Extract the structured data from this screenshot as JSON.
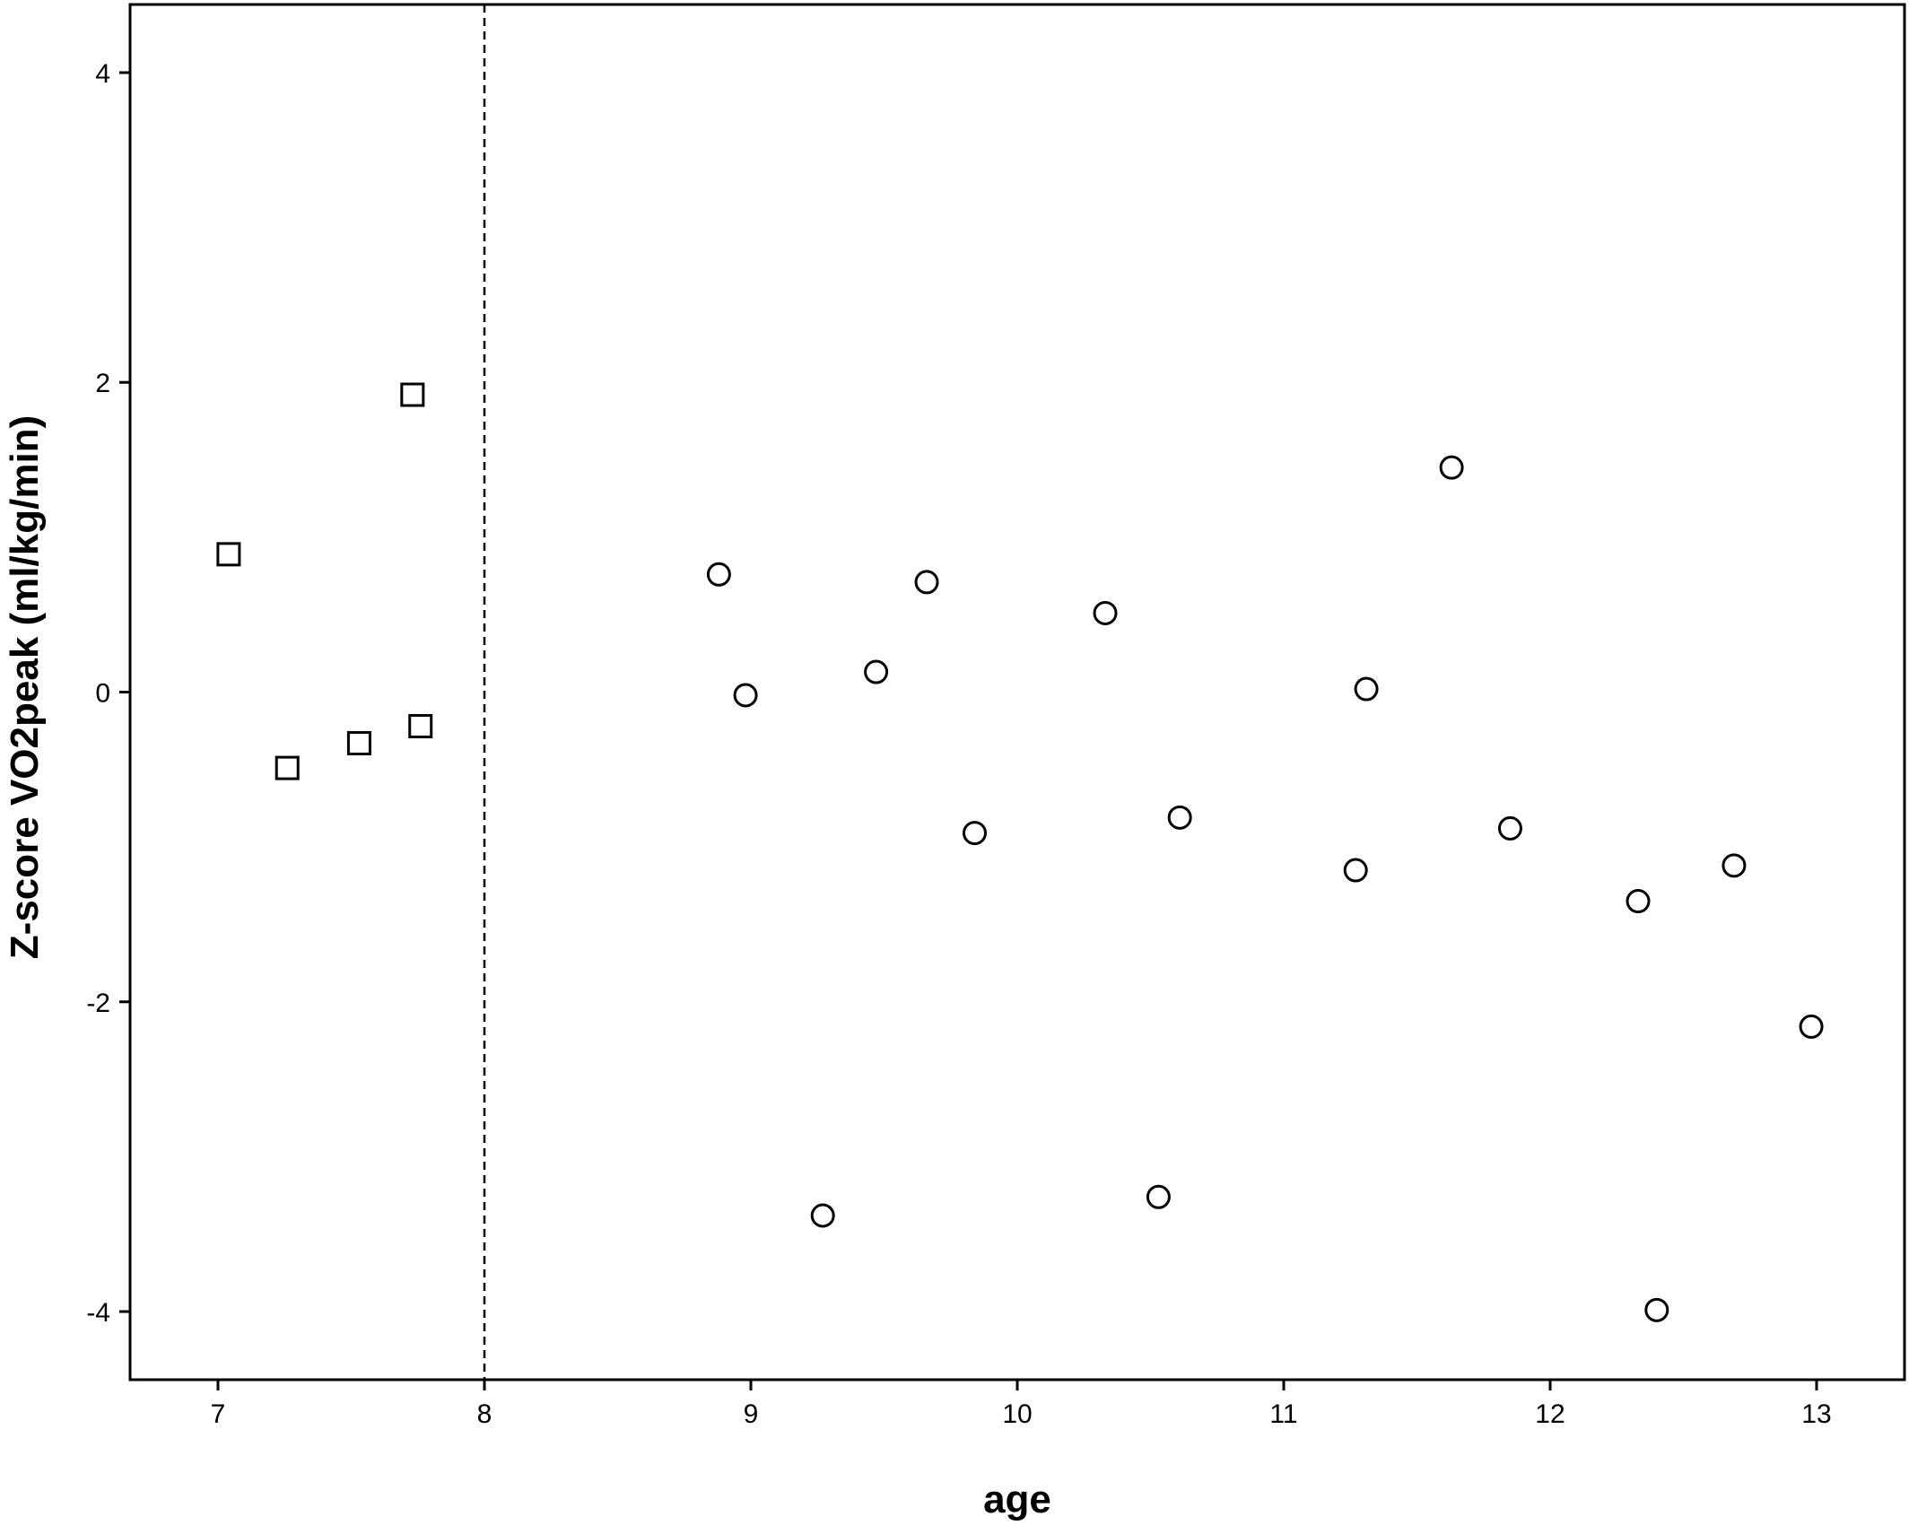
{
  "chart_data": {
    "type": "scatter",
    "title": "",
    "xlabel": "age",
    "ylabel": "Z-score VO2peak (ml/kg/min)",
    "xlim": [
      6.67,
      13.33
    ],
    "ylim": [
      -4.44,
      4.44
    ],
    "x_ticks": [
      7,
      8,
      9,
      10,
      11,
      12,
      13
    ],
    "x_tick_labels": [
      "7",
      "8",
      "9",
      "10",
      "11",
      "12",
      "13"
    ],
    "y_ticks": [
      4,
      2,
      0,
      -2,
      -4
    ],
    "y_tick_labels": [
      "4",
      "2",
      "0",
      "-2",
      "-4"
    ],
    "grid": false,
    "legend": "none",
    "reference_line": {
      "axis": "x",
      "value": 8,
      "style": "dashed"
    },
    "series": [
      {
        "marker": "square",
        "points": [
          {
            "x": 7.04,
            "y": 0.89
          },
          {
            "x": 7.26,
            "y": -0.49
          },
          {
            "x": 7.53,
            "y": -0.33
          },
          {
            "x": 7.73,
            "y": 1.92
          },
          {
            "x": 7.76,
            "y": -0.22
          }
        ]
      },
      {
        "marker": "circle",
        "points": [
          {
            "x": 8.88,
            "y": 0.76
          },
          {
            "x": 8.98,
            "y": -0.02
          },
          {
            "x": 9.27,
            "y": -3.38
          },
          {
            "x": 9.47,
            "y": 0.13
          },
          {
            "x": 9.66,
            "y": 0.71
          },
          {
            "x": 9.84,
            "y": -0.91
          },
          {
            "x": 10.33,
            "y": 0.51
          },
          {
            "x": 10.53,
            "y": -3.26
          },
          {
            "x": 10.61,
            "y": -0.81
          },
          {
            "x": 11.27,
            "y": -1.15
          },
          {
            "x": 11.31,
            "y": 0.02
          },
          {
            "x": 11.63,
            "y": 1.45
          },
          {
            "x": 11.85,
            "y": -0.88
          },
          {
            "x": 12.33,
            "y": -1.35
          },
          {
            "x": 12.4,
            "y": -3.99
          },
          {
            "x": 12.69,
            "y": -1.12
          },
          {
            "x": 12.98,
            "y": -2.16
          }
        ]
      }
    ]
  }
}
